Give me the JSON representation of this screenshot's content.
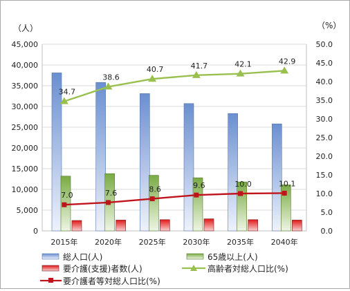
{
  "chart_data": {
    "type": "bar",
    "categories": [
      "2015年",
      "2020年",
      "2025年",
      "2030年",
      "2035年",
      "2040年"
    ],
    "left_axis": {
      "unit_label": "（人）",
      "ylim": [
        0,
        45000
      ],
      "ticks": [
        "0",
        "5,000",
        "10,000",
        "15,000",
        "20,000",
        "25,000",
        "30,000",
        "35,000",
        "40,000",
        "45,000"
      ]
    },
    "right_axis": {
      "unit_label": "（%）",
      "ylim": [
        0,
        50
      ],
      "ticks": [
        "0.0",
        "5.0",
        "10.0",
        "15.0",
        "20.0",
        "25.0",
        "30.0",
        "35.0",
        "40.0",
        "45.0",
        "50.0"
      ]
    },
    "series": [
      {
        "name": "総人口(人)",
        "kind": "bar",
        "axis": "left",
        "color": "#8eaadb",
        "values": [
          38100,
          35800,
          33100,
          30700,
          28300,
          25800
        ]
      },
      {
        "name": "65歳以上(人)",
        "kind": "bar",
        "axis": "left",
        "color": "#8cb35a",
        "values": [
          13200,
          13800,
          13400,
          12800,
          11800,
          11100
        ]
      },
      {
        "name": "要介護(支援)者数(人)",
        "kind": "bar",
        "axis": "left",
        "color": "#e02020",
        "values": [
          2500,
          2600,
          2700,
          2900,
          2700,
          2600
        ]
      },
      {
        "name": "高齢者対総人口比(%)",
        "kind": "line",
        "axis": "right",
        "color": "#99c04e",
        "marker": "triangle",
        "values": [
          34.7,
          38.6,
          40.7,
          41.7,
          42.1,
          42.9
        ],
        "labels": [
          "34.7",
          "38.6",
          "40.7",
          "41.7",
          "42.1",
          "42.9"
        ]
      },
      {
        "name": "要介護者等対総人口比(%)",
        "kind": "line",
        "axis": "right",
        "color": "#c0141c",
        "marker": "square",
        "values": [
          7.0,
          7.6,
          8.6,
          9.6,
          10.0,
          10.1
        ],
        "labels": [
          "7.0",
          "7.6",
          "8.6",
          "9.6",
          "10.0",
          "10.1"
        ]
      }
    ],
    "grid": true,
    "legend_position": "bottom"
  }
}
